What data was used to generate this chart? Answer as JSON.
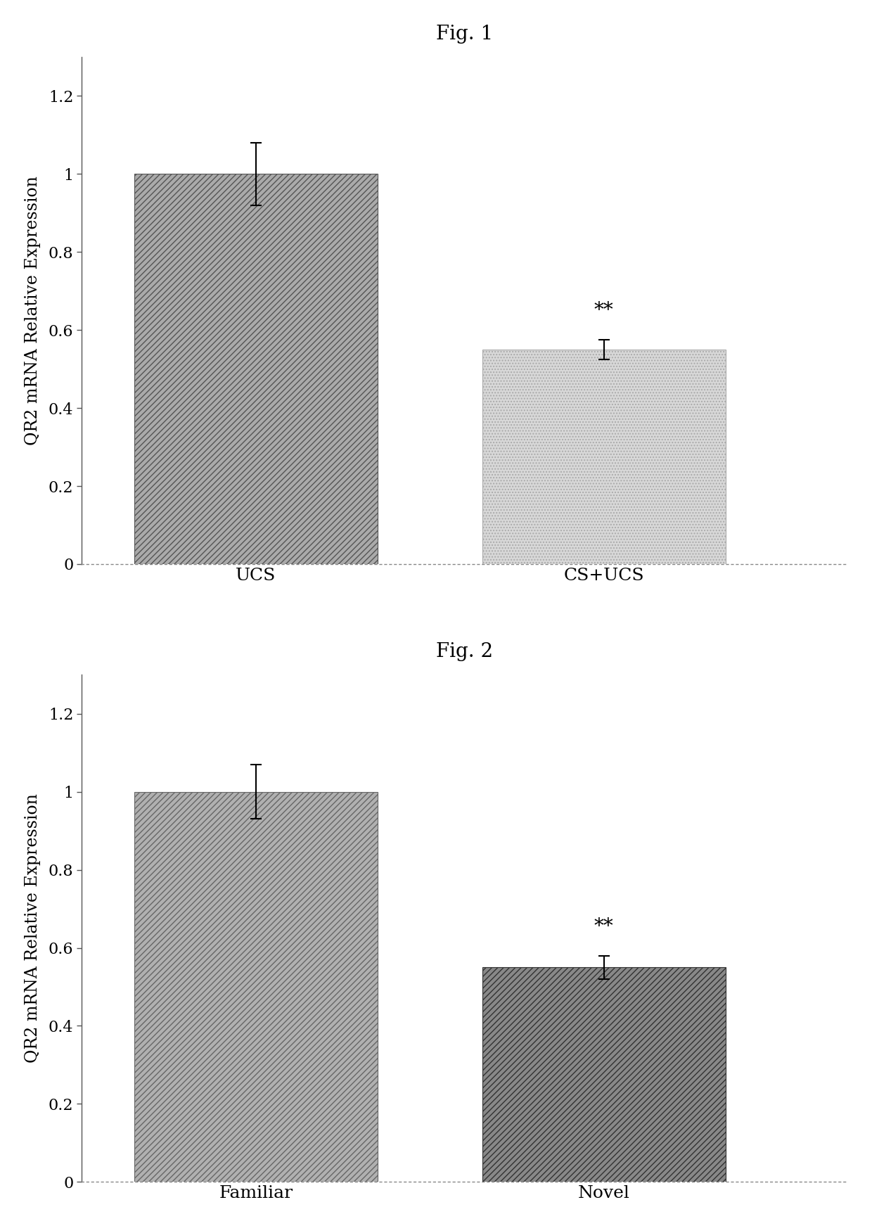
{
  "fig1": {
    "title": "Fig. 1",
    "categories": [
      "UCS",
      "CS+UCS"
    ],
    "values": [
      1.0,
      0.55
    ],
    "errors": [
      0.08,
      0.025
    ],
    "bar_colors": [
      "#aaaaaa",
      "#d8d8d8"
    ],
    "hatch_patterns": [
      "////",
      "...."
    ],
    "hatch_colors": [
      "#555555",
      "#aaaaaa"
    ],
    "significance": [
      "",
      "**"
    ],
    "ylabel": "QR2 mRNA Relative Expression",
    "ylim": [
      0,
      1.3
    ],
    "yticks": [
      0,
      0.2,
      0.4,
      0.6,
      0.8,
      1.0,
      1.2
    ],
    "ytick_labels": [
      "0",
      "0.2",
      "0.4",
      "0.6",
      "0.8",
      "1",
      "1.2"
    ]
  },
  "fig2": {
    "title": "Fig. 2",
    "categories": [
      "Familiar",
      "Novel"
    ],
    "values": [
      1.0,
      0.55
    ],
    "errors": [
      0.07,
      0.03
    ],
    "bar_colors": [
      "#b0b0b0",
      "#888888"
    ],
    "hatch_patterns": [
      "////",
      "////"
    ],
    "hatch_colors": [
      "#666666",
      "#333333"
    ],
    "significance": [
      "",
      "**"
    ],
    "ylabel": "QR2 mRNA Relative Expression",
    "ylim": [
      0,
      1.3
    ],
    "yticks": [
      0,
      0.2,
      0.4,
      0.6,
      0.8,
      1.0,
      1.2
    ],
    "ytick_labels": [
      "0",
      "0.2",
      "0.4",
      "0.6",
      "0.8",
      "1",
      "1.2"
    ]
  },
  "background_color": "#ffffff",
  "bar_width": 0.35,
  "title_fontsize": 20,
  "axis_label_fontsize": 17,
  "tick_fontsize": 16,
  "sig_fontsize": 20,
  "xtick_fontsize": 18
}
